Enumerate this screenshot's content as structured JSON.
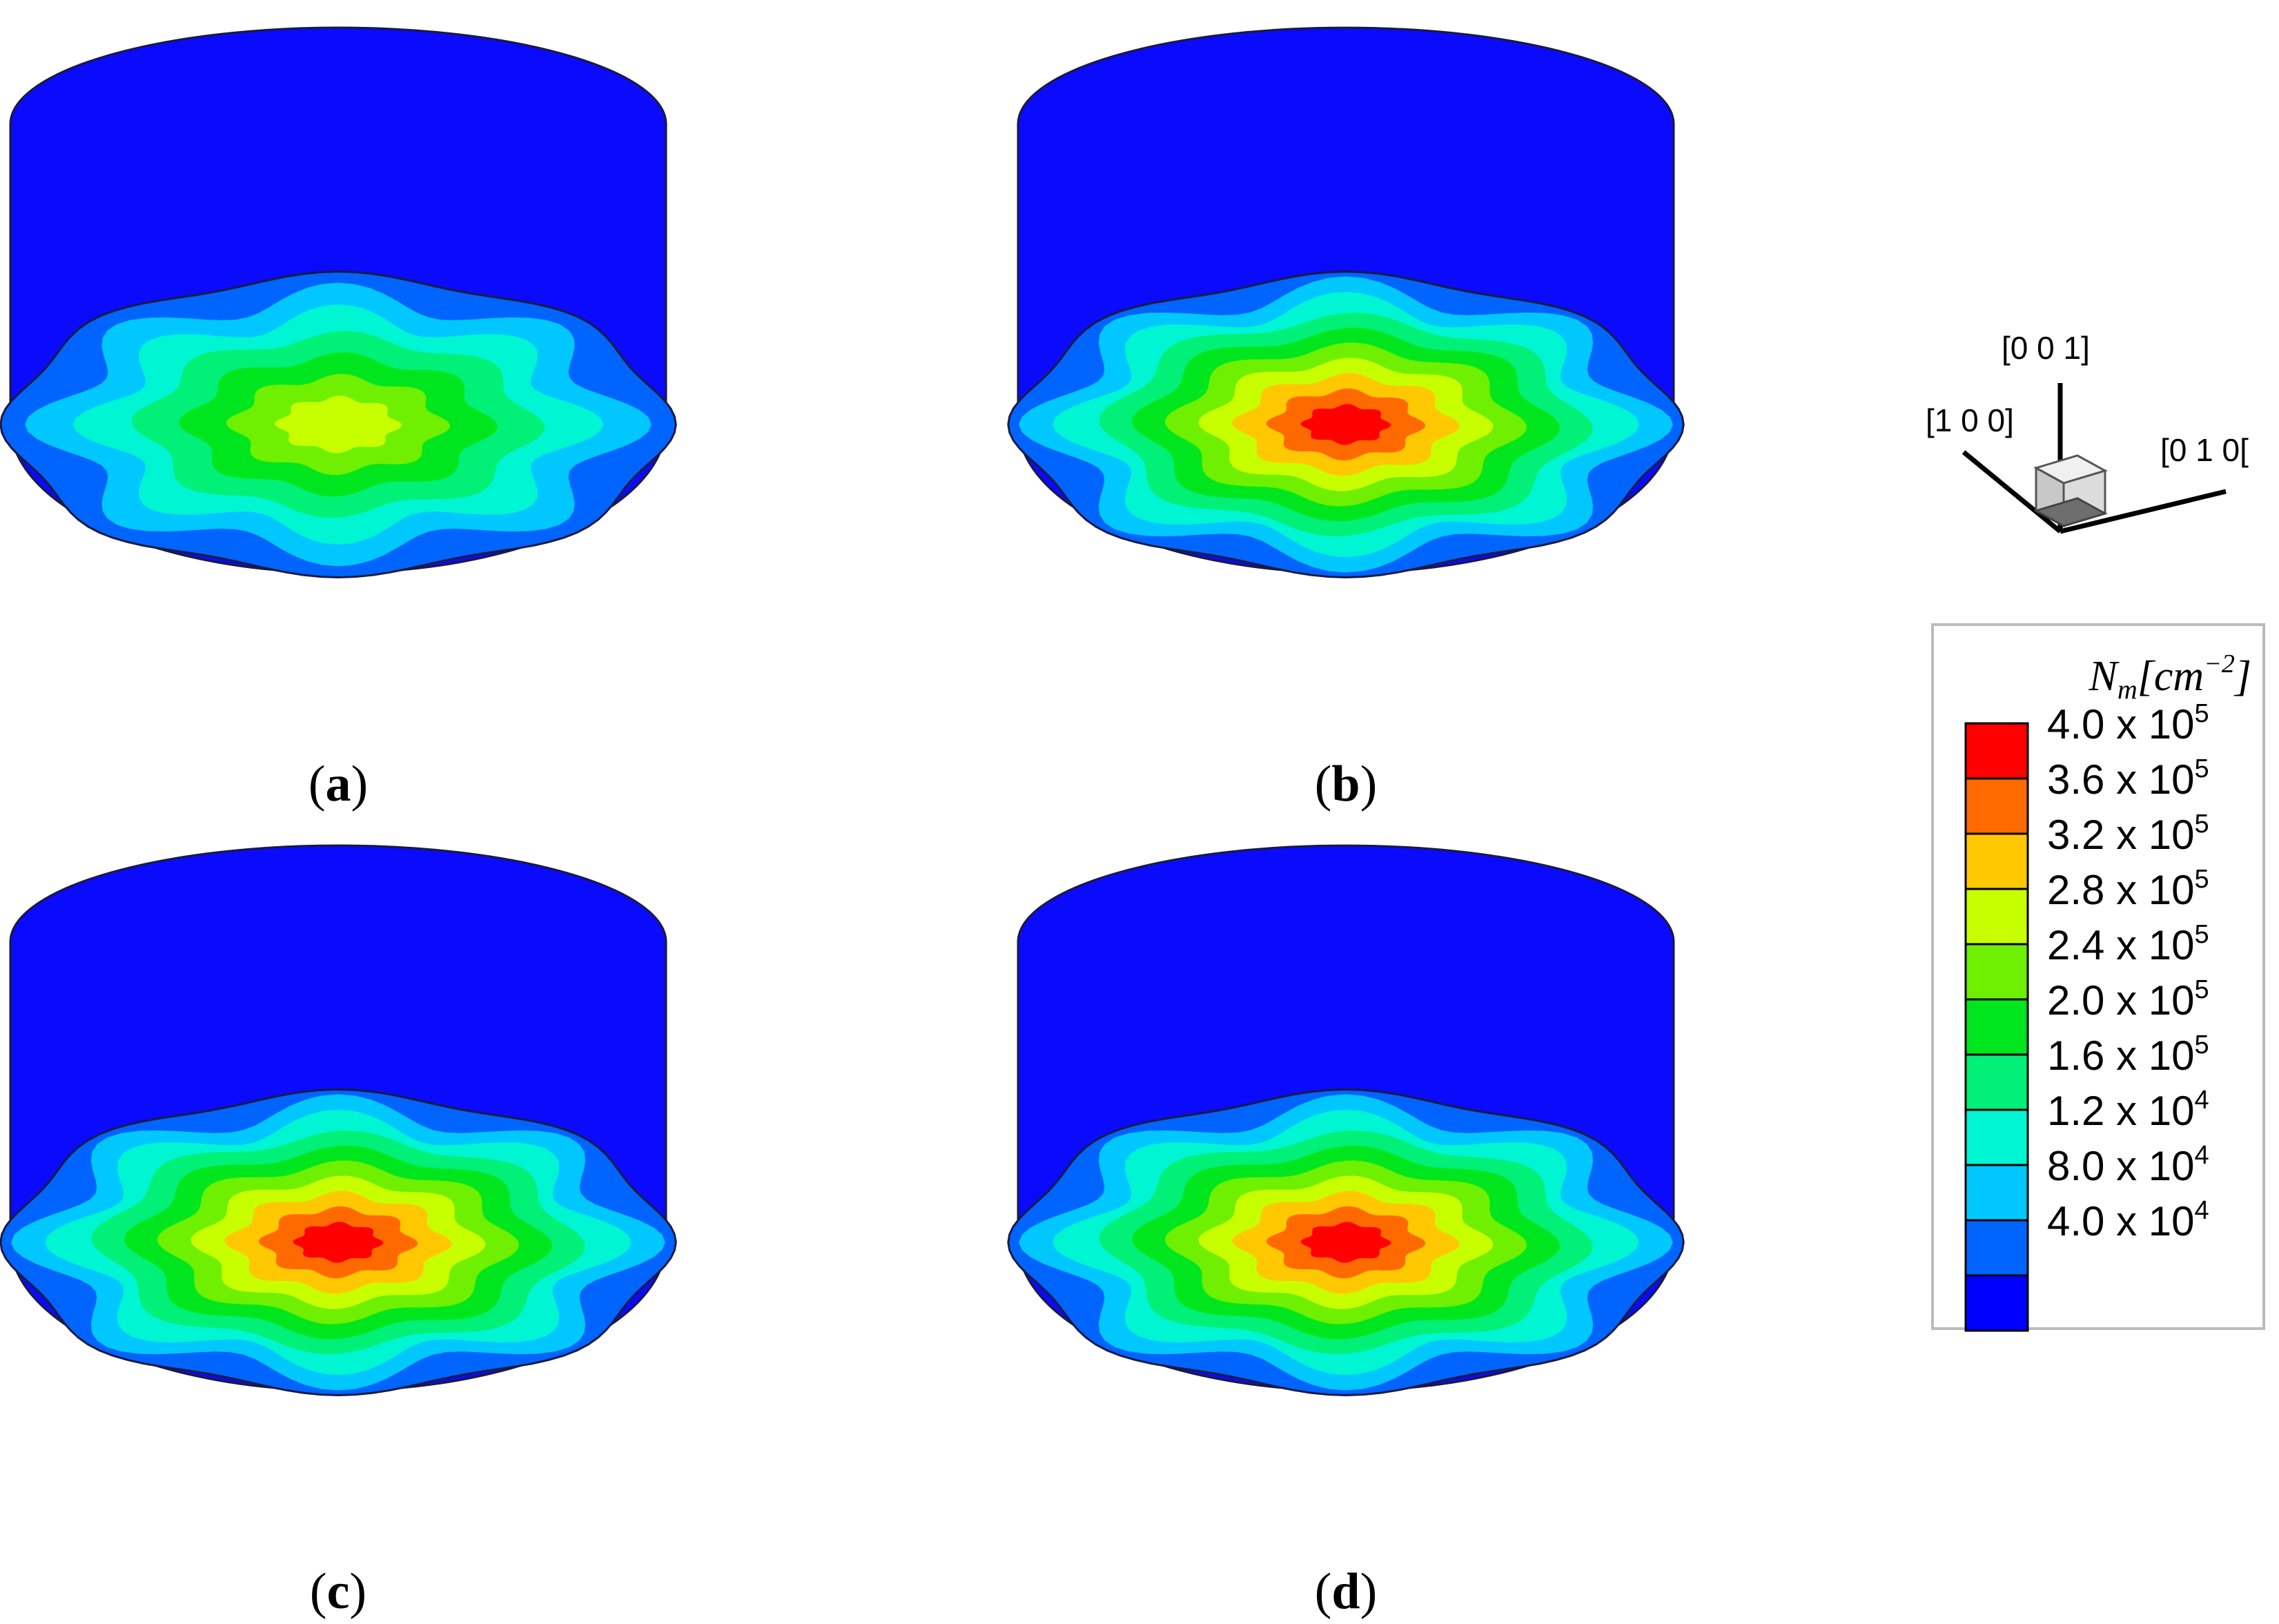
{
  "panels": [
    {
      "id": "a",
      "label_open": "(",
      "label_letter": "a",
      "label_close": ")",
      "peak_level": 7
    },
    {
      "id": "b",
      "label_open": "(",
      "label_letter": "b",
      "label_close": ")",
      "peak_level": 10
    },
    {
      "id": "c",
      "label_open": "(",
      "label_letter": "c",
      "label_close": ")",
      "peak_level": 10
    },
    {
      "id": "d",
      "label_open": "(",
      "label_letter": "d",
      "label_close": ")",
      "peak_level": 10
    }
  ],
  "orientation_triad": {
    "x_label": "[1 0 0]",
    "y_label": "[0 1 0[",
    "z_label": "[0 0 1]"
  },
  "legend": {
    "title_symbol": "N",
    "title_subscript": "m",
    "title_units": "[cm",
    "title_exponent": "−2",
    "title_close": "]",
    "entries": [
      {
        "mantissa": "4.0 x 10",
        "exponent": "5",
        "color": "#ff0000"
      },
      {
        "mantissa": "3.6 x 10",
        "exponent": "5",
        "color": "#ff6a00"
      },
      {
        "mantissa": "3.2 x 10",
        "exponent": "5",
        "color": "#ffc800"
      },
      {
        "mantissa": "2.8 x 10",
        "exponent": "5",
        "color": "#c8ff00"
      },
      {
        "mantissa": "2.4 x 10",
        "exponent": "5",
        "color": "#6ef000"
      },
      {
        "mantissa": "2.0 x 10",
        "exponent": "5",
        "color": "#00e61e"
      },
      {
        "mantissa": "1.6 x 10",
        "exponent": "5",
        "color": "#00f078"
      },
      {
        "mantissa": "1.2 x 10",
        "exponent": "4",
        "color": "#00f5d2"
      },
      {
        "mantissa": "8.0 x 10",
        "exponent": "4",
        "color": "#00c8ff"
      },
      {
        "mantissa": "4.0 x 10",
        "exponent": "4",
        "color": "#0064ff"
      },
      {
        "mantissa": "",
        "exponent": "",
        "color": "#0000ff"
      }
    ]
  },
  "colors": {
    "background_cylinder": "#0a0aff",
    "outline": "#1a1a40"
  }
}
